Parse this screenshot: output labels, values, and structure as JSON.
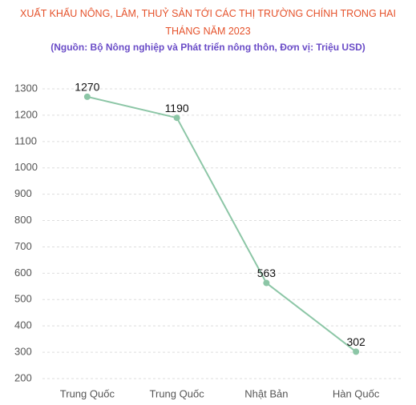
{
  "chart_data": {
    "type": "line",
    "title": "XUẤT KHẨU NÔNG, LÂM, THUỶ SẢN TỚI CÁC THỊ TRƯỜNG CHÍNH TRONG HAI THÁNG NĂM 2023",
    "subtitle": "(Nguồn:  Bộ Nông nghiệp và Phát triển nông thôn, Đơn vị: Triệu USD)",
    "categories": [
      "Trung Quốc",
      "Trung Quốc",
      "Nhật Bản",
      "Hàn Quốc"
    ],
    "values": [
      1270,
      1190,
      563,
      302
    ],
    "color": "#8cc6a6",
    "ylim": [
      200,
      1300
    ],
    "yticks": [
      200,
      300,
      400,
      500,
      600,
      700,
      800,
      900,
      1000,
      1100,
      1200,
      1300
    ],
    "grid": true
  }
}
